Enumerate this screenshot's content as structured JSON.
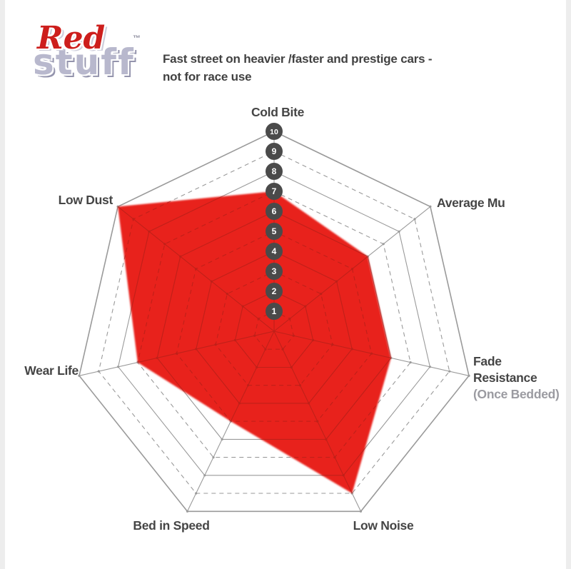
{
  "logo": {
    "red": "Red",
    "stuff": "stuff",
    "tm": "™"
  },
  "subtitle": {
    "line1": "Fast street on heavier /faster and prestige cars -",
    "line2": "not for race use"
  },
  "chart_data": {
    "type": "radar",
    "categories": [
      "Cold Bite",
      "Average Mu",
      "Fade Resistance (Once Bedded)",
      "Low Noise",
      "Bed in Speed",
      "Wear Life",
      "Low Dust"
    ],
    "values": [
      7,
      6,
      6,
      9,
      5,
      7,
      10
    ],
    "scale": {
      "min": 0,
      "max": 10,
      "ticks": [
        1,
        2,
        3,
        4,
        5,
        6,
        7,
        8,
        9,
        10
      ]
    },
    "legend": "none",
    "grid": "on",
    "axis_labels": [
      {
        "lines": [
          "Cold Bite"
        ]
      },
      {
        "lines": [
          "Average Mu"
        ]
      },
      {
        "lines": [
          "Fade",
          "Resistance",
          "(Once Bedded)"
        ],
        "muted_line_index": 2
      },
      {
        "lines": [
          "Low Noise"
        ]
      },
      {
        "lines": [
          "Bed in Speed"
        ]
      },
      {
        "lines": [
          "Wear Life"
        ]
      },
      {
        "lines": [
          "Low Dust"
        ]
      }
    ],
    "colors": {
      "fill": "#e8241e",
      "grid": "#9a9a9a",
      "grid_inside": "#9e2018",
      "tick_circle": "#4a4a4a",
      "tick_text": "#ffffff",
      "label": "#454545",
      "label_muted": "#9b9ba1"
    }
  }
}
